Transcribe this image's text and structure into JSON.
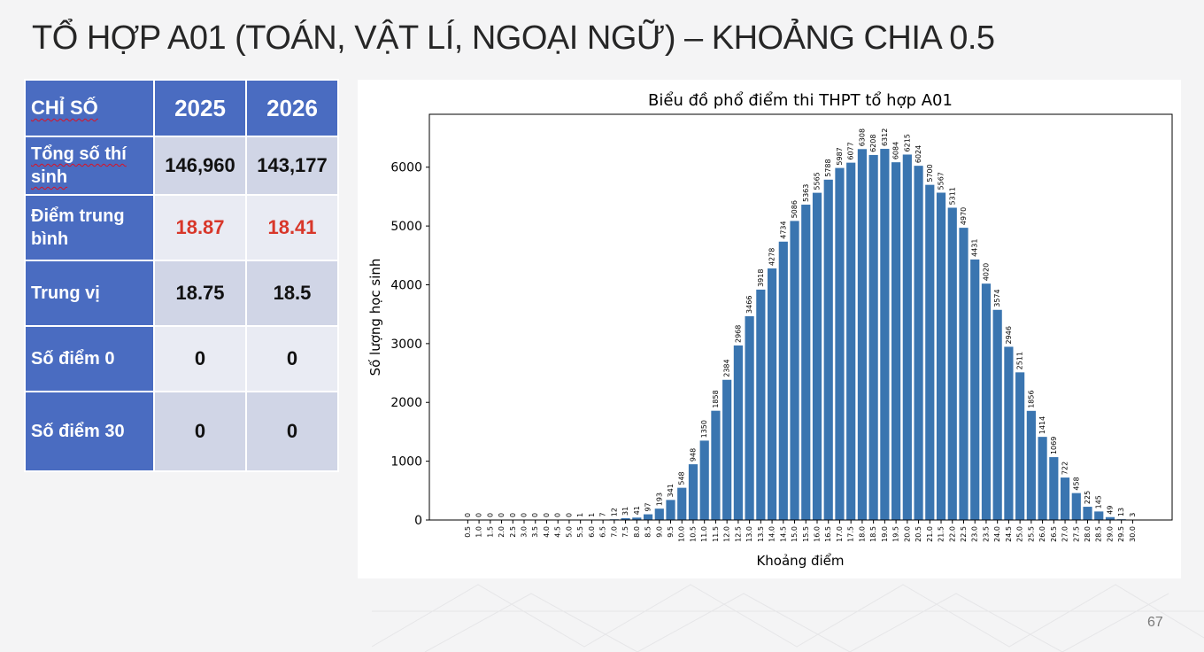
{
  "slide": {
    "title": "TỔ HỢP A01 (TOÁN, VẬT LÍ, NGOẠI NGỮ) – KHOẢNG CHIA 0.5",
    "page_number": "67"
  },
  "table": {
    "header": {
      "label": "CHỈ SỐ",
      "year1": "2025",
      "year2": "2026"
    },
    "rows": [
      {
        "label": "Tổng số thí sinh",
        "v2025": "146,960",
        "v2026": "143,177"
      },
      {
        "label": "Điểm trung bình",
        "v2025": "18.87",
        "v2026": "18.41"
      },
      {
        "label": "Trung vị",
        "v2025": "18.75",
        "v2026": "18.5"
      },
      {
        "label": "Số điểm 0",
        "v2025": "0",
        "v2026": "0"
      },
      {
        "label": "Số điểm 30",
        "v2025": "0",
        "v2026": "0"
      }
    ]
  },
  "colors": {
    "table_header": "#4a6cc1",
    "highlight_red": "#d8372a",
    "bar": "#3a75b0"
  },
  "chart_data": {
    "type": "bar",
    "title": "Biểu đồ phổ điểm thi THPT tổ hợp A01",
    "xlabel": "Khoảng điểm",
    "ylabel": "Số lượng học sinh",
    "ylim": [
      0,
      6900
    ],
    "yticks": [
      0,
      1000,
      2000,
      3000,
      4000,
      5000,
      6000
    ],
    "categories": [
      "0.5",
      "1.0",
      "1.5",
      "2.0",
      "2.5",
      "3.0",
      "3.5",
      "4.0",
      "4.5",
      "5.0",
      "5.5",
      "6.0",
      "6.5",
      "7.0",
      "7.5",
      "8.0",
      "8.5",
      "9.0",
      "9.5",
      "10.0",
      "10.5",
      "11.0",
      "11.5",
      "12.0",
      "12.5",
      "13.0",
      "13.5",
      "14.0",
      "14.5",
      "15.0",
      "15.5",
      "16.0",
      "16.5",
      "17.0",
      "17.5",
      "18.0",
      "18.5",
      "19.0",
      "19.5",
      "20.0",
      "20.5",
      "21.0",
      "21.5",
      "22.0",
      "22.5",
      "23.0",
      "23.5",
      "24.0",
      "24.5",
      "25.0",
      "25.5",
      "26.0",
      "26.5",
      "27.0",
      "27.5",
      "28.0",
      "28.5",
      "29.0",
      "29.5",
      "30.0"
    ],
    "values": [
      0,
      0,
      0,
      0,
      0,
      0,
      0,
      0,
      0,
      0,
      1,
      1,
      7,
      12,
      31,
      41,
      97,
      193,
      341,
      548,
      948,
      1350,
      1858,
      2384,
      2968,
      3466,
      3918,
      4278,
      4734,
      5086,
      5363,
      5565,
      5788,
      5987,
      6077,
      6308,
      6208,
      6312,
      6084,
      6215,
      6024,
      5700,
      5567,
      5311,
      4970,
      4431,
      4020,
      3574,
      2946,
      2511,
      1856,
      1414,
      1069,
      722,
      458,
      225,
      145,
      49,
      13,
      3
    ],
    "grid": false,
    "legend": "none"
  }
}
